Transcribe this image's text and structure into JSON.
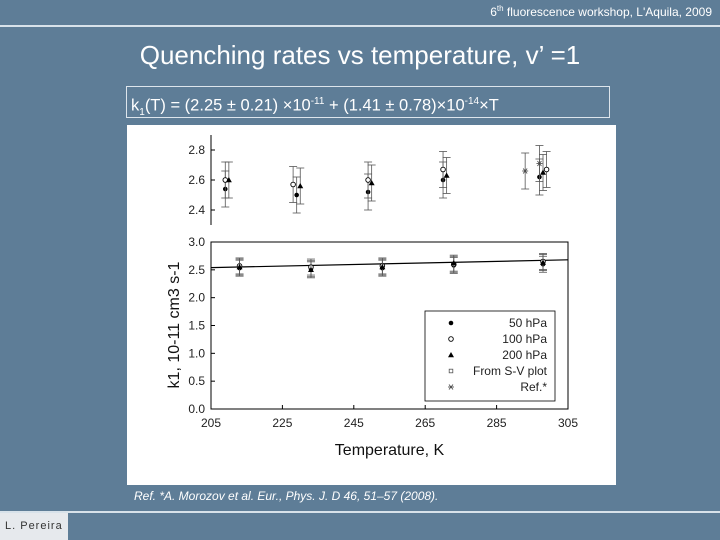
{
  "header": {
    "prefix": "6",
    "sup": "th",
    "rest": " fluorescence workshop, L'Aquila, 2009"
  },
  "title": "Quenching rates vs temperature, v’ =1",
  "formula": {
    "p1": "k",
    "sub1": "1",
    "p2": "(T) = (2.25 ± 0.21) ×10",
    "sup1": "-11",
    "p3": " + (1.41 ± 0.78)×10",
    "sup2": "-14",
    "p4": "×T"
  },
  "reference": "Ref. *A. Morozov et al. Eur., Phys. J. D 46, 51–57 (2008).",
  "footer": "L. Pereira",
  "chart_data": {
    "type": "scatter",
    "xlabel": "Temperature, K",
    "ylabel": "k1, 10-11 cm3 s-1",
    "xlim": [
      205,
      305
    ],
    "x_ticks": [
      205,
      225,
      245,
      265,
      285,
      305
    ],
    "lower_panel": {
      "ylim": [
        0,
        3.0
      ],
      "y_ticks": [
        "0.0",
        "0.5",
        "1.0",
        "1.5",
        "2.0",
        "2.5",
        "3.0"
      ],
      "series": [
        {
          "name": "50 hPa",
          "marker": "filled-circle",
          "x": [
            213,
            233,
            253,
            273,
            298
          ],
          "y": [
            2.53,
            2.52,
            2.53,
            2.58,
            2.6
          ]
        },
        {
          "name": "100 hPa",
          "marker": "open-circle",
          "x": [
            213,
            233,
            253,
            273,
            298
          ],
          "y": [
            2.57,
            2.55,
            2.57,
            2.6,
            2.65
          ]
        },
        {
          "name": "200 hPa",
          "marker": "filled-triangle",
          "x": [
            213,
            233,
            253,
            273,
            298
          ],
          "y": [
            2.55,
            2.5,
            2.55,
            2.62,
            2.63
          ]
        },
        {
          "name": "From S-V plot",
          "marker": "small-square"
        },
        {
          "name": "Ref.*",
          "marker": "asterisk"
        }
      ],
      "fit_line": {
        "x": [
          205,
          305
        ],
        "y": [
          2.54,
          2.68
        ]
      }
    },
    "upper_panel": {
      "ylim": [
        2.3,
        2.9
      ],
      "y_ticks": [
        "2.4",
        "2.6",
        "2.8"
      ],
      "series": [
        {
          "name": "50 hPa",
          "x": [
            209,
            229,
            249,
            270,
            297
          ],
          "y": [
            2.54,
            2.5,
            2.52,
            2.6,
            2.62
          ]
        },
        {
          "name": "100 hPa",
          "x": [
            209,
            228,
            249,
            270,
            299
          ],
          "y": [
            2.6,
            2.57,
            2.6,
            2.67,
            2.67
          ]
        },
        {
          "name": "200 hPa",
          "x": [
            210,
            230,
            250,
            271,
            298
          ],
          "y": [
            2.6,
            2.56,
            2.58,
            2.63,
            2.65
          ]
        },
        {
          "name": "Ref.*",
          "x": [
            293,
            297
          ],
          "y": [
            2.66,
            2.71
          ]
        }
      ]
    },
    "legend_position": "bottom-right"
  }
}
